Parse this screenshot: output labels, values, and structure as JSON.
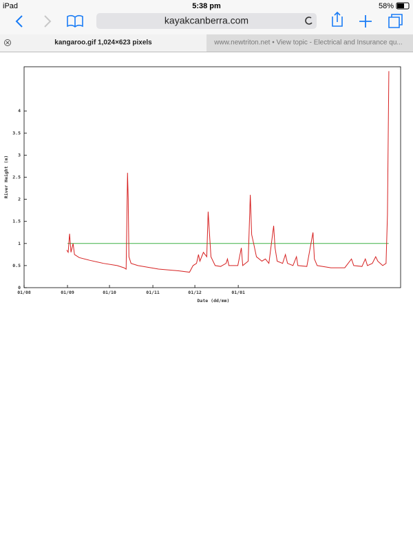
{
  "status_bar": {
    "device": "iPad",
    "time": "5:38 pm",
    "battery": "58%"
  },
  "toolbar": {
    "url": "kayakcanberra.com"
  },
  "tabs": [
    "kangaroo.gif 1,024×623 pixels",
    "www.newtriton.net • View topic - Electrical and Insurance qu..."
  ],
  "chart_data": {
    "type": "line",
    "y_label": "River Height (m)",
    "x_label": "Date (dd/mm)",
    "xlim": [
      0,
      269
    ],
    "ylim": [
      0,
      5
    ],
    "xticks": [
      {
        "value": 0,
        "label": "01/08"
      },
      {
        "value": 31,
        "label": "01/09"
      },
      {
        "value": 61,
        "label": "01/10"
      },
      {
        "value": 92,
        "label": "01/11"
      },
      {
        "value": 122,
        "label": "01/12"
      },
      {
        "value": 153,
        "label": "01/01"
      }
    ],
    "yticks": [
      0,
      0.5,
      1,
      1.5,
      2,
      2.5,
      3,
      3.5,
      4
    ],
    "series": [
      {
        "color": "#d62020",
        "x": [
          30.5,
          31.5,
          32.5,
          33.5,
          35,
          36,
          39.4,
          46.8,
          56.7,
          66.5,
          71.4,
          72.9,
          73.9,
          74.4,
          74.9,
          76.4,
          81.3,
          96.1,
          110.8,
          118.2,
          120.7,
          123.2,
          124.6,
          125.6,
          128.1,
          130.5,
          131.5,
          132.5,
          133.5,
          136.5,
          140.4,
          144.3,
          145.3,
          146.3,
          152.7,
          155.2,
          156.2,
          160.1,
          161.6,
          162.6,
          164,
          166,
          169.9,
          172.4,
          174.9,
          178.3,
          179.3,
          180.8,
          184.7,
          186.7,
          188.2,
          192.1,
          194.6,
          195.6,
          202,
          206.4,
          207.4,
          209.4,
          219.2,
          229.1,
          233.9,
          235.5,
          241.4,
          243.8,
          245.3,
          248.8,
          251.2,
          252.7,
          256.2,
          258.6,
          259.6,
          260.6
        ],
        "values": [
          0.85,
          0.8,
          1.22,
          0.8,
          1.0,
          0.75,
          0.68,
          0.62,
          0.55,
          0.5,
          0.45,
          0.42,
          2.6,
          2.0,
          0.7,
          0.55,
          0.5,
          0.42,
          0.38,
          0.35,
          0.5,
          0.55,
          0.75,
          0.6,
          0.8,
          0.7,
          1.72,
          1.2,
          0.7,
          0.5,
          0.48,
          0.55,
          0.65,
          0.5,
          0.5,
          0.9,
          0.5,
          0.6,
          2.1,
          1.2,
          1.0,
          0.7,
          0.6,
          0.65,
          0.55,
          1.4,
          0.9,
          0.6,
          0.55,
          0.75,
          0.55,
          0.5,
          0.7,
          0.5,
          0.48,
          1.25,
          0.65,
          0.5,
          0.45,
          0.45,
          0.65,
          0.5,
          0.48,
          0.65,
          0.5,
          0.55,
          0.7,
          0.6,
          0.5,
          0.55,
          1.65,
          4.9
        ]
      },
      {
        "color": "#3cb043",
        "x": [
          31,
          260.5
        ],
        "values": [
          1,
          1
        ]
      }
    ]
  }
}
